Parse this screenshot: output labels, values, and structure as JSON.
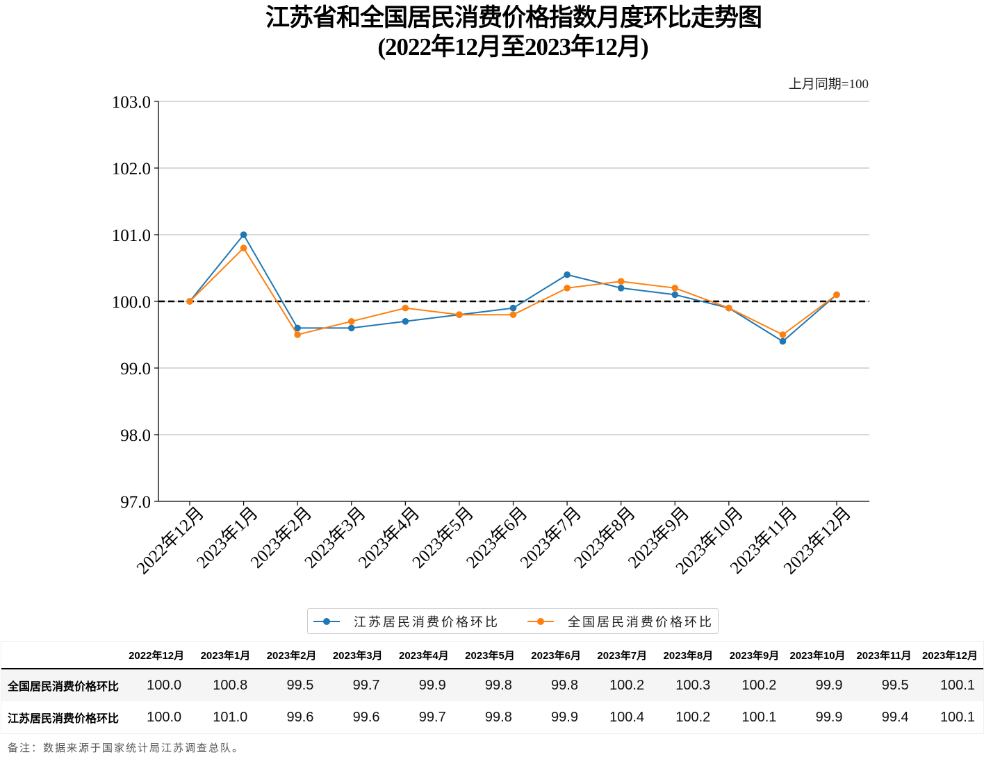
{
  "chart_data": {
    "type": "line",
    "title": "江苏省和全国居民消费价格指数月度环比走势图",
    "subtitle": "(2022年12月至2023年12月)",
    "unit_note": "上月同期=100",
    "xlabel": "",
    "ylabel": "",
    "categories": [
      "2022年12月",
      "2023年1月",
      "2023年2月",
      "2023年3月",
      "2023年4月",
      "2023年5月",
      "2023年6月",
      "2023年7月",
      "2023年8月",
      "2023年9月",
      "2023年10月",
      "2023年11月",
      "2023年12月"
    ],
    "series": [
      {
        "name": "江苏居民消费价格环比",
        "color": "#1f77b4",
        "values": [
          100.0,
          101.0,
          99.6,
          99.6,
          99.7,
          99.8,
          99.9,
          100.4,
          100.2,
          100.1,
          99.9,
          99.4,
          100.1
        ]
      },
      {
        "name": "全国居民消费价格环比",
        "color": "#ff7f0e",
        "values": [
          100.0,
          100.8,
          99.5,
          99.7,
          99.9,
          99.8,
          99.8,
          100.2,
          100.3,
          100.2,
          99.9,
          99.5,
          100.1
        ]
      }
    ],
    "reference_line": {
      "value": 100.0,
      "style": "dashed",
      "color": "#000000"
    },
    "ylim": [
      97.0,
      103.0
    ],
    "yticks": [
      "97.0",
      "98.0",
      "99.0",
      "100.0",
      "101.0",
      "102.0",
      "103.0"
    ],
    "grid": "horizontal",
    "legend": "bottom-center"
  },
  "table": {
    "columns": [
      "2022年12月",
      "2023年1月",
      "2023年2月",
      "2023年3月",
      "2023年4月",
      "2023年5月",
      "2023年6月",
      "2023年7月",
      "2023年8月",
      "2023年9月",
      "2023年10月",
      "2023年11月",
      "2023年12月"
    ],
    "rows": [
      {
        "label": "全国居民消费价格环比",
        "values": [
          "100.0",
          "100.8",
          "99.5",
          "99.7",
          "99.9",
          "99.8",
          "99.8",
          "100.2",
          "100.3",
          "100.2",
          "99.9",
          "99.5",
          "100.1"
        ]
      },
      {
        "label": "江苏居民消费价格环比",
        "values": [
          "100.0",
          "101.0",
          "99.6",
          "99.6",
          "99.7",
          "99.8",
          "99.9",
          "100.4",
          "100.2",
          "100.1",
          "99.9",
          "99.4",
          "100.1"
        ]
      }
    ]
  },
  "footnote": "备注：数据来源于国家统计局江苏调查总队。"
}
